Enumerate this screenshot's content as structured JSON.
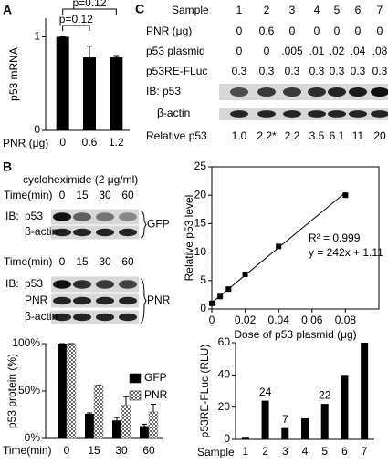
{
  "panel_labels": [
    "A",
    "B",
    "C"
  ],
  "panel_b_blots": {
    "treatment": "cycloheximide (2 μg/ml)",
    "blots": [
      {
        "time_label": "Time(min)",
        "times": [
          "0",
          "15",
          "30",
          "60"
        ],
        "ib": "IB:",
        "rows": [
          "p53",
          "β-actin"
        ],
        "group": "GFP"
      },
      {
        "time_label": "Time(min)",
        "times": [
          "0",
          "15",
          "30",
          "60"
        ],
        "ib": "IB:",
        "rows": [
          "p53",
          "PNR",
          "β-actin"
        ],
        "group": "PNR"
      }
    ]
  },
  "panel_c_table": {
    "header": [
      "Sample",
      "1",
      "2",
      "3",
      "4",
      "5",
      "6",
      "7"
    ],
    "rows": [
      [
        "PNR (μg)",
        "0",
        "0.6",
        "0",
        "0",
        "0",
        "0",
        "0"
      ],
      [
        "p53 plasmid",
        "0",
        "0",
        ".005",
        ".01",
        ".02",
        ".04",
        ".08"
      ],
      [
        "p53RE-FLuc",
        "0.3",
        "0.3",
        "0.3",
        "0.3",
        "0.3",
        "0.3",
        "0.3"
      ]
    ],
    "blots": [
      "IB: p53",
      "β-actin"
    ],
    "relative": [
      "Relative p53",
      "1.0",
      "2.2*",
      "2.2",
      "3.5",
      "6.1",
      "11",
      "20"
    ]
  },
  "chart_data": [
    {
      "type": "bar",
      "y_label": "p53 mRNA",
      "x_label": "PNR (μg)",
      "categories": [
        "0",
        "0.6",
        "1.2"
      ],
      "values": [
        1.0,
        0.78,
        0.78
      ],
      "errors": [
        0,
        0.12,
        0.02
      ],
      "color": "#000000",
      "ylim": [
        0,
        1.2
      ],
      "yticks": [
        0,
        1
      ],
      "annotations": [
        "p=0.12",
        "p=0.12"
      ]
    },
    {
      "type": "bar",
      "y_label": "p53 protein (%)",
      "x_label": "Time(min)",
      "categories": [
        "0",
        "15",
        "30",
        "60"
      ],
      "series": [
        {
          "name": "GFP",
          "color": "#000000",
          "values": [
            100,
            26,
            19,
            13
          ],
          "errors": [
            0,
            1,
            3,
            2
          ]
        },
        {
          "name": "PNR",
          "color": "#888888",
          "pattern": "checker",
          "values": [
            100,
            56,
            35,
            28
          ],
          "errors": [
            0,
            0,
            9,
            8
          ]
        }
      ],
      "ylim": [
        0,
        100
      ],
      "yticks": [
        {
          "value": 0,
          "label": "0%"
        },
        {
          "value": 50,
          "label": "50%"
        },
        {
          "value": 100,
          "label": "100%"
        }
      ],
      "legend": "right"
    },
    {
      "type": "scatter",
      "x_label": "Dose of p53 plasmid (μg)",
      "y_label": "Relative p53 level",
      "x": [
        0,
        0.005,
        0.01,
        0.02,
        0.04,
        0.08
      ],
      "values": [
        1.0,
        2.2,
        3.5,
        6.1,
        11,
        20
      ],
      "color": "#000000",
      "xlim": [
        0,
        0.1
      ],
      "xticks": [
        0,
        0.02,
        0.04,
        0.06,
        0.08
      ],
      "ylim": [
        0,
        25
      ],
      "yticks": [
        0,
        5,
        10,
        15,
        20,
        25
      ],
      "annotations": [
        "R² = 0.999",
        "y = 242x + 1.11"
      ],
      "trendline": {
        "slope": 242,
        "intercept": 1.11
      }
    },
    {
      "type": "bar",
      "y_label": "p53RE-FLuc (RLU)",
      "x_label": "Sample",
      "categories": [
        "1",
        "2",
        "3",
        "4",
        "5",
        "6",
        "7"
      ],
      "values": [
        1,
        24,
        7,
        13,
        22,
        40,
        60
      ],
      "value_labels": [
        null,
        "24",
        "7",
        null,
        "22",
        null,
        null
      ],
      "color": "#000000",
      "ylim": [
        0,
        60
      ],
      "yticks": [
        0,
        20,
        40,
        60
      ]
    }
  ]
}
